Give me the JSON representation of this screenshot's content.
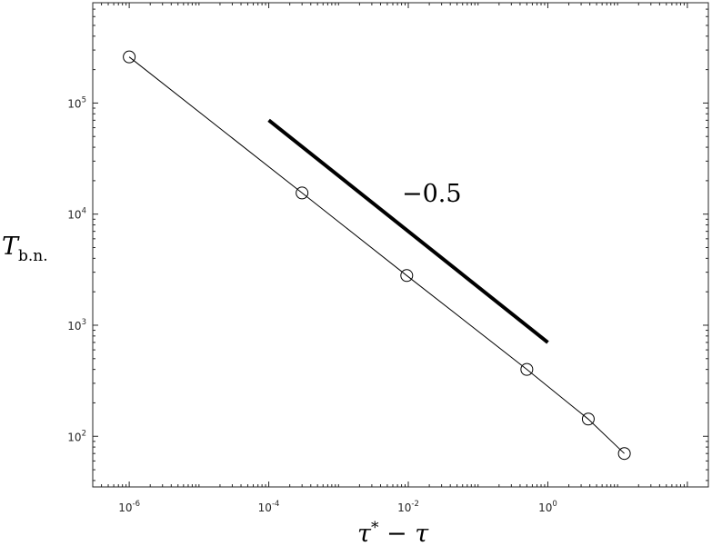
{
  "chart_data": {
    "type": "scatter",
    "title": "",
    "xlabel": {
      "main": "τ",
      "sup": "*",
      "rest": " − τ"
    },
    "ylabel": {
      "main": "T",
      "sub": "b.n."
    },
    "xscale": "log",
    "yscale": "log",
    "xlim": [
      3e-07,
      200
    ],
    "ylim": [
      35,
      800000
    ],
    "grid": false,
    "x_ticks": [
      {
        "value": 1e-06,
        "base": "10",
        "exp": "-6"
      },
      {
        "value": 0.0001,
        "base": "10",
        "exp": "-4"
      },
      {
        "value": 0.01,
        "base": "10",
        "exp": "-2"
      },
      {
        "value": 1,
        "base": "10",
        "exp": "0"
      }
    ],
    "y_ticks": [
      {
        "value": 100,
        "base": "10",
        "exp": "2"
      },
      {
        "value": 1000,
        "base": "10",
        "exp": "3"
      },
      {
        "value": 10000,
        "base": "10",
        "exp": "4"
      },
      {
        "value": 100000,
        "base": "10",
        "exp": "5"
      }
    ],
    "series": [
      {
        "marker": "open-circle",
        "line": "thin-solid",
        "color": "#000000",
        "x": [
          1e-06,
          0.0003,
          0.0095,
          0.5,
          3.8,
          12.5
        ],
        "y": [
          260000,
          15500,
          2800,
          400,
          143,
          70
        ]
      }
    ],
    "reference_line": {
      "label": "−0.5",
      "color": "#000000",
      "x": [
        0.0001,
        1.0
      ],
      "y": [
        70000,
        700
      ]
    }
  }
}
